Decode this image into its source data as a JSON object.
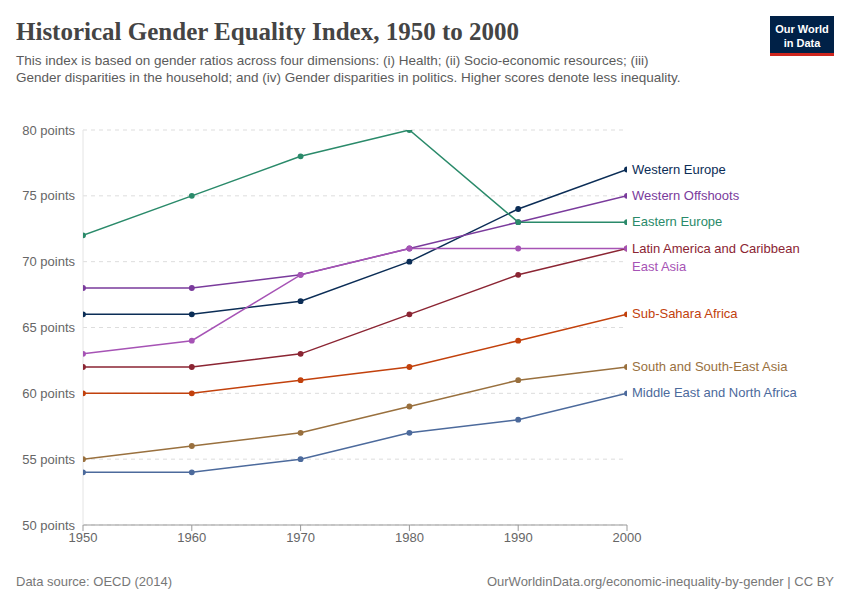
{
  "chart_data": {
    "type": "line",
    "title": "Historical Gender Equality Index, 1950 to 2000",
    "subtitle": "This index is based on gender ratios across four dimensions: (i) Health; (ii) Socio-economic resources; (iii) Gender disparities in the household; and (iv) Gender disparities in politics. Higher scores denote less inequality.",
    "logo": "Our World in Data",
    "source": "Data source: OECD (2014)",
    "url": "OurWorldinData.org/economic-inequality-by-gender | CC BY",
    "x": [
      1950,
      1960,
      1970,
      1980,
      1990,
      2000
    ],
    "xlim": [
      1950,
      2000
    ],
    "xticks": [
      1950,
      1960,
      1970,
      1980,
      1990,
      2000
    ],
    "ylim": [
      50,
      80
    ],
    "yticks": [
      {
        "value": 50,
        "label": "50 points"
      },
      {
        "value": 55,
        "label": "55 points"
      },
      {
        "value": 60,
        "label": "60 points"
      },
      {
        "value": 65,
        "label": "65 points"
      },
      {
        "value": 70,
        "label": "70 points"
      },
      {
        "value": 75,
        "label": "75 points"
      },
      {
        "value": 80,
        "label": "80 points"
      }
    ],
    "grid": true,
    "marker": "circle",
    "series": [
      {
        "name": "Western Europe",
        "color": "#0b2d56",
        "values": [
          66,
          66,
          67,
          70,
          74,
          77
        ]
      },
      {
        "name": "Western Offshoots",
        "color": "#7a3b9c",
        "values": [
          68,
          68,
          69,
          71,
          73,
          75
        ]
      },
      {
        "name": "Eastern Europe",
        "color": "#2a8a6a",
        "values": [
          72,
          75,
          78,
          80,
          73,
          73
        ]
      },
      {
        "name": "Latin America and Caribbean",
        "color": "#8b2533",
        "values": [
          62,
          62,
          63,
          66,
          69,
          71
        ]
      },
      {
        "name": "East Asia",
        "color": "#a653b5",
        "values": [
          63,
          64,
          69,
          71,
          71,
          71
        ]
      },
      {
        "name": "Sub-Sahara Africa",
        "color": "#c2410c",
        "values": [
          60,
          60,
          61,
          62,
          64,
          66
        ]
      },
      {
        "name": "South and South-East Asia",
        "color": "#99703e",
        "values": [
          55,
          56,
          57,
          59,
          61,
          62
        ]
      },
      {
        "name": "Middle East and North Africa",
        "color": "#4c6a9c",
        "values": [
          54,
          54,
          55,
          57,
          58,
          60
        ]
      }
    ]
  }
}
